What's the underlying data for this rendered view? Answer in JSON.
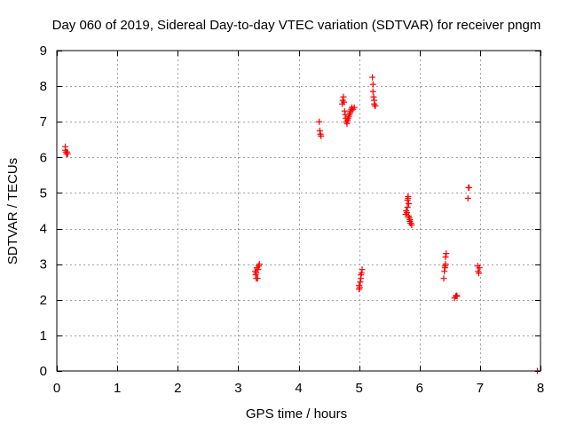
{
  "chart_data": {
    "type": "scatter",
    "title": "Day 060 of 2019, Sidereal Day-to-day VTEC variation (SDTVAR) for receiver pngm",
    "xlabel": "GPS time / hours",
    "ylabel": "SDTVAR / TECUs",
    "xlim": [
      0,
      8
    ],
    "ylim": [
      0,
      9
    ],
    "xticks": [
      "0",
      "1",
      "2",
      "3",
      "4",
      "5",
      "6",
      "7",
      "8"
    ],
    "yticks": [
      "0",
      "1",
      "2",
      "3",
      "4",
      "5",
      "6",
      "7",
      "8",
      "9"
    ],
    "grid": true,
    "marker": "+",
    "color": "#ff0000",
    "series": [
      {
        "points": [
          [
            0.14,
            6.3
          ],
          [
            0.14,
            6.2
          ],
          [
            0.15,
            6.15
          ],
          [
            0.16,
            6.1
          ],
          [
            0.17,
            6.15
          ],
          [
            0.18,
            6.1
          ],
          [
            3.28,
            2.8
          ],
          [
            3.29,
            2.7
          ],
          [
            3.3,
            2.6
          ],
          [
            3.3,
            2.75
          ],
          [
            3.31,
            2.9
          ],
          [
            3.32,
            2.6
          ],
          [
            3.33,
            2.85
          ],
          [
            3.34,
            2.95
          ],
          [
            3.35,
            3.0
          ],
          [
            4.34,
            7.0
          ],
          [
            4.35,
            6.75
          ],
          [
            4.36,
            6.65
          ],
          [
            4.37,
            6.6
          ],
          [
            4.72,
            7.5
          ],
          [
            4.73,
            7.6
          ],
          [
            4.74,
            7.7
          ],
          [
            4.75,
            7.55
          ],
          [
            4.76,
            7.3
          ],
          [
            4.77,
            7.2
          ],
          [
            4.78,
            7.1
          ],
          [
            4.79,
            7.0
          ],
          [
            4.8,
            6.95
          ],
          [
            4.81,
            7.05
          ],
          [
            4.82,
            7.1
          ],
          [
            4.83,
            7.15
          ],
          [
            4.84,
            7.2
          ],
          [
            4.85,
            7.25
          ],
          [
            4.86,
            7.3
          ],
          [
            4.87,
            7.35
          ],
          [
            4.88,
            7.4
          ],
          [
            4.9,
            7.35
          ],
          [
            4.92,
            7.4
          ],
          [
            5.0,
            2.3
          ],
          [
            5.0,
            2.4
          ],
          [
            5.01,
            2.35
          ],
          [
            5.02,
            2.5
          ],
          [
            5.03,
            2.7
          ],
          [
            5.03,
            2.6
          ],
          [
            5.04,
            2.75
          ],
          [
            5.05,
            2.85
          ],
          [
            5.22,
            8.25
          ],
          [
            5.23,
            8.05
          ],
          [
            5.23,
            7.85
          ],
          [
            5.24,
            7.7
          ],
          [
            5.25,
            7.6
          ],
          [
            5.25,
            7.5
          ],
          [
            5.26,
            7.45
          ],
          [
            5.27,
            7.45
          ],
          [
            5.77,
            4.4
          ],
          [
            5.78,
            4.5
          ],
          [
            5.79,
            4.45
          ],
          [
            5.8,
            4.6
          ],
          [
            5.8,
            4.8
          ],
          [
            5.81,
            4.85
          ],
          [
            5.81,
            4.9
          ],
          [
            5.82,
            4.7
          ],
          [
            5.82,
            4.35
          ],
          [
            5.83,
            4.3
          ],
          [
            5.84,
            4.25
          ],
          [
            5.84,
            4.2
          ],
          [
            5.85,
            4.15
          ],
          [
            5.86,
            4.15
          ],
          [
            5.87,
            4.1
          ],
          [
            6.4,
            2.6
          ],
          [
            6.41,
            2.8
          ],
          [
            6.42,
            2.9
          ],
          [
            6.42,
            2.95
          ],
          [
            6.43,
            3.0
          ],
          [
            6.43,
            3.2
          ],
          [
            6.44,
            3.3
          ],
          [
            6.58,
            2.05
          ],
          [
            6.6,
            2.1
          ],
          [
            6.61,
            2.12
          ],
          [
            6.62,
            2.1
          ],
          [
            6.8,
            4.85
          ],
          [
            6.81,
            5.15
          ],
          [
            6.82,
            5.15
          ],
          [
            6.96,
            2.95
          ],
          [
            6.97,
            2.8
          ],
          [
            6.98,
            2.75
          ],
          [
            6.99,
            2.9
          ],
          [
            7.95,
            0.0
          ]
        ]
      }
    ]
  }
}
